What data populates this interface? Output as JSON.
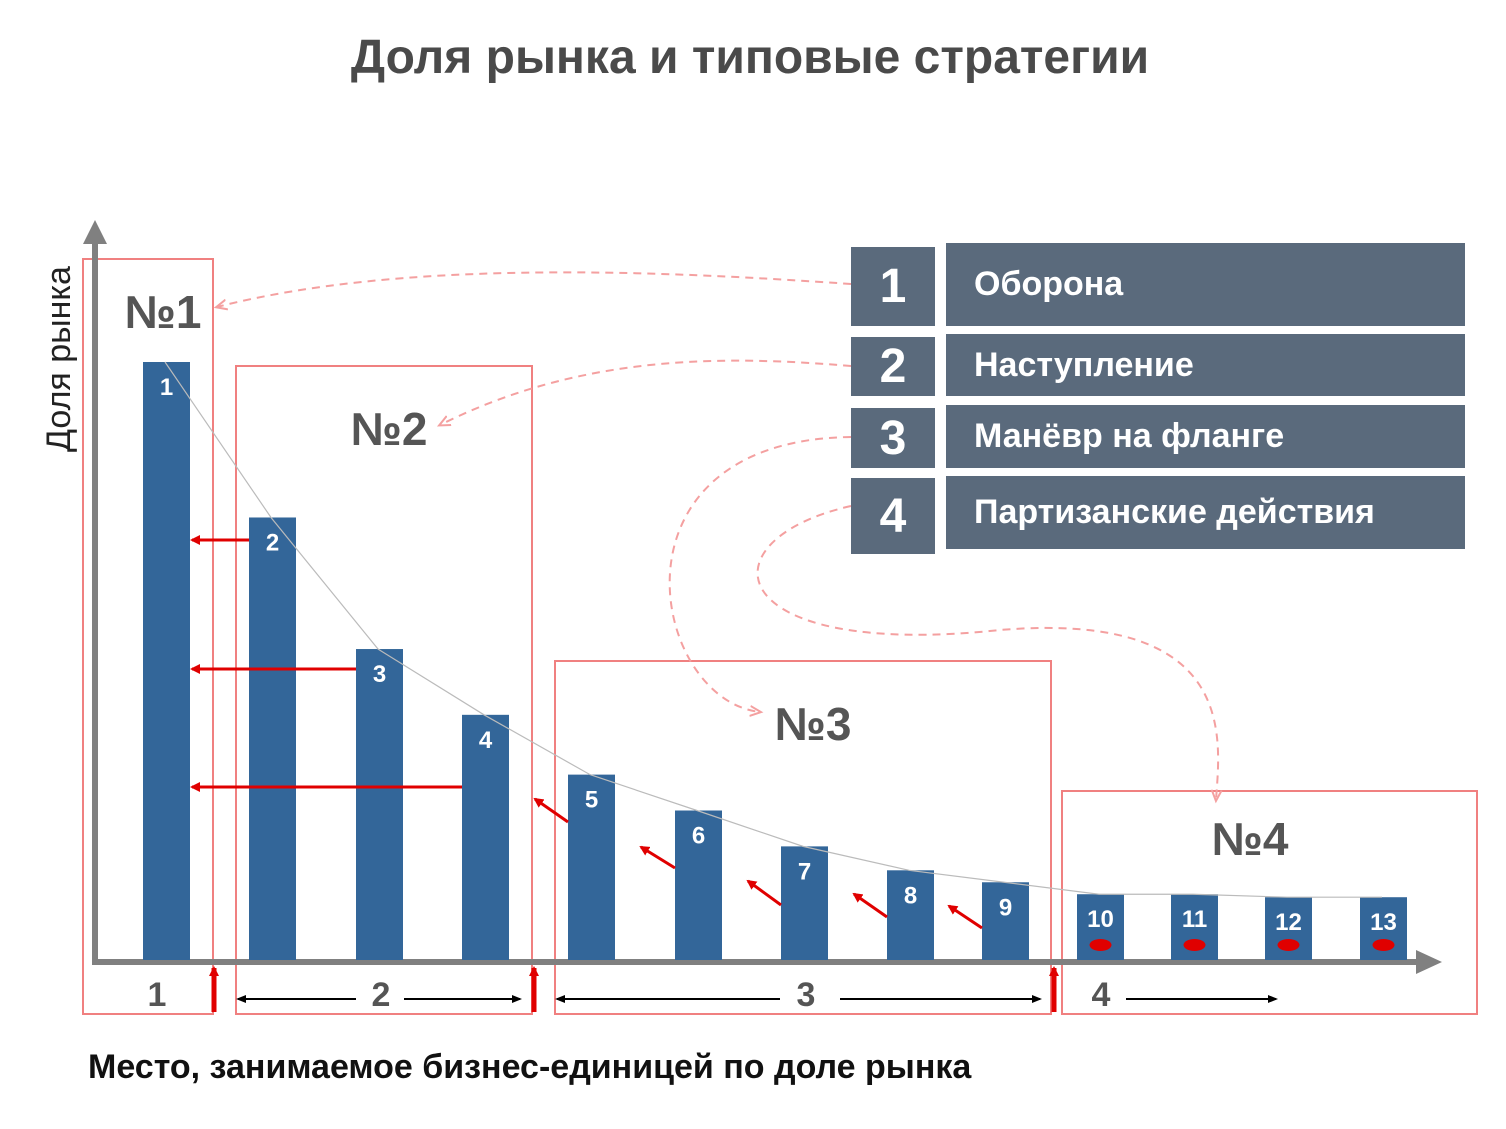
{
  "title": "Доля рынка и типовые стратегии",
  "subtitle": "Место, занимаемое бизнес-единицей по доле рынка",
  "colors": {
    "bar": "#336699",
    "legend_bg": "#5a6a7c",
    "group_box": "#f08080",
    "arrow": "#e00000",
    "axis": "#808080",
    "dashed": "#f4a0a0"
  },
  "legend": [
    {
      "num": "1",
      "label": "Оборона"
    },
    {
      "num": "2",
      "label": "Наступление"
    },
    {
      "num": "3",
      "label": "Манёвр на фланге"
    },
    {
      "num": "4",
      "label": "Партизанские действия"
    }
  ],
  "chart_data": {
    "type": "bar",
    "ylabel": "Доля рынка",
    "xlabel": "Место, занимаемое бизнес-единицей по доле рынка",
    "categories": [
      "1",
      "2",
      "3",
      "4",
      "5",
      "6",
      "7",
      "8",
      "9",
      "10",
      "11",
      "12",
      "13"
    ],
    "values": [
      100,
      74,
      52,
      41,
      31,
      25,
      19,
      15,
      13,
      11,
      11,
      10.5,
      10.5
    ],
    "groups": [
      {
        "label": "№1",
        "axis_label": "1",
        "bars": [
          "1"
        ]
      },
      {
        "label": "№2",
        "axis_label": "2",
        "bars": [
          "2",
          "3",
          "4"
        ]
      },
      {
        "label": "№3",
        "axis_label": "3",
        "bars": [
          "5",
          "6",
          "7",
          "8",
          "9"
        ]
      },
      {
        "label": "№4",
        "axis_label": "4",
        "bars": [
          "10",
          "11",
          "12",
          "13"
        ]
      }
    ]
  }
}
